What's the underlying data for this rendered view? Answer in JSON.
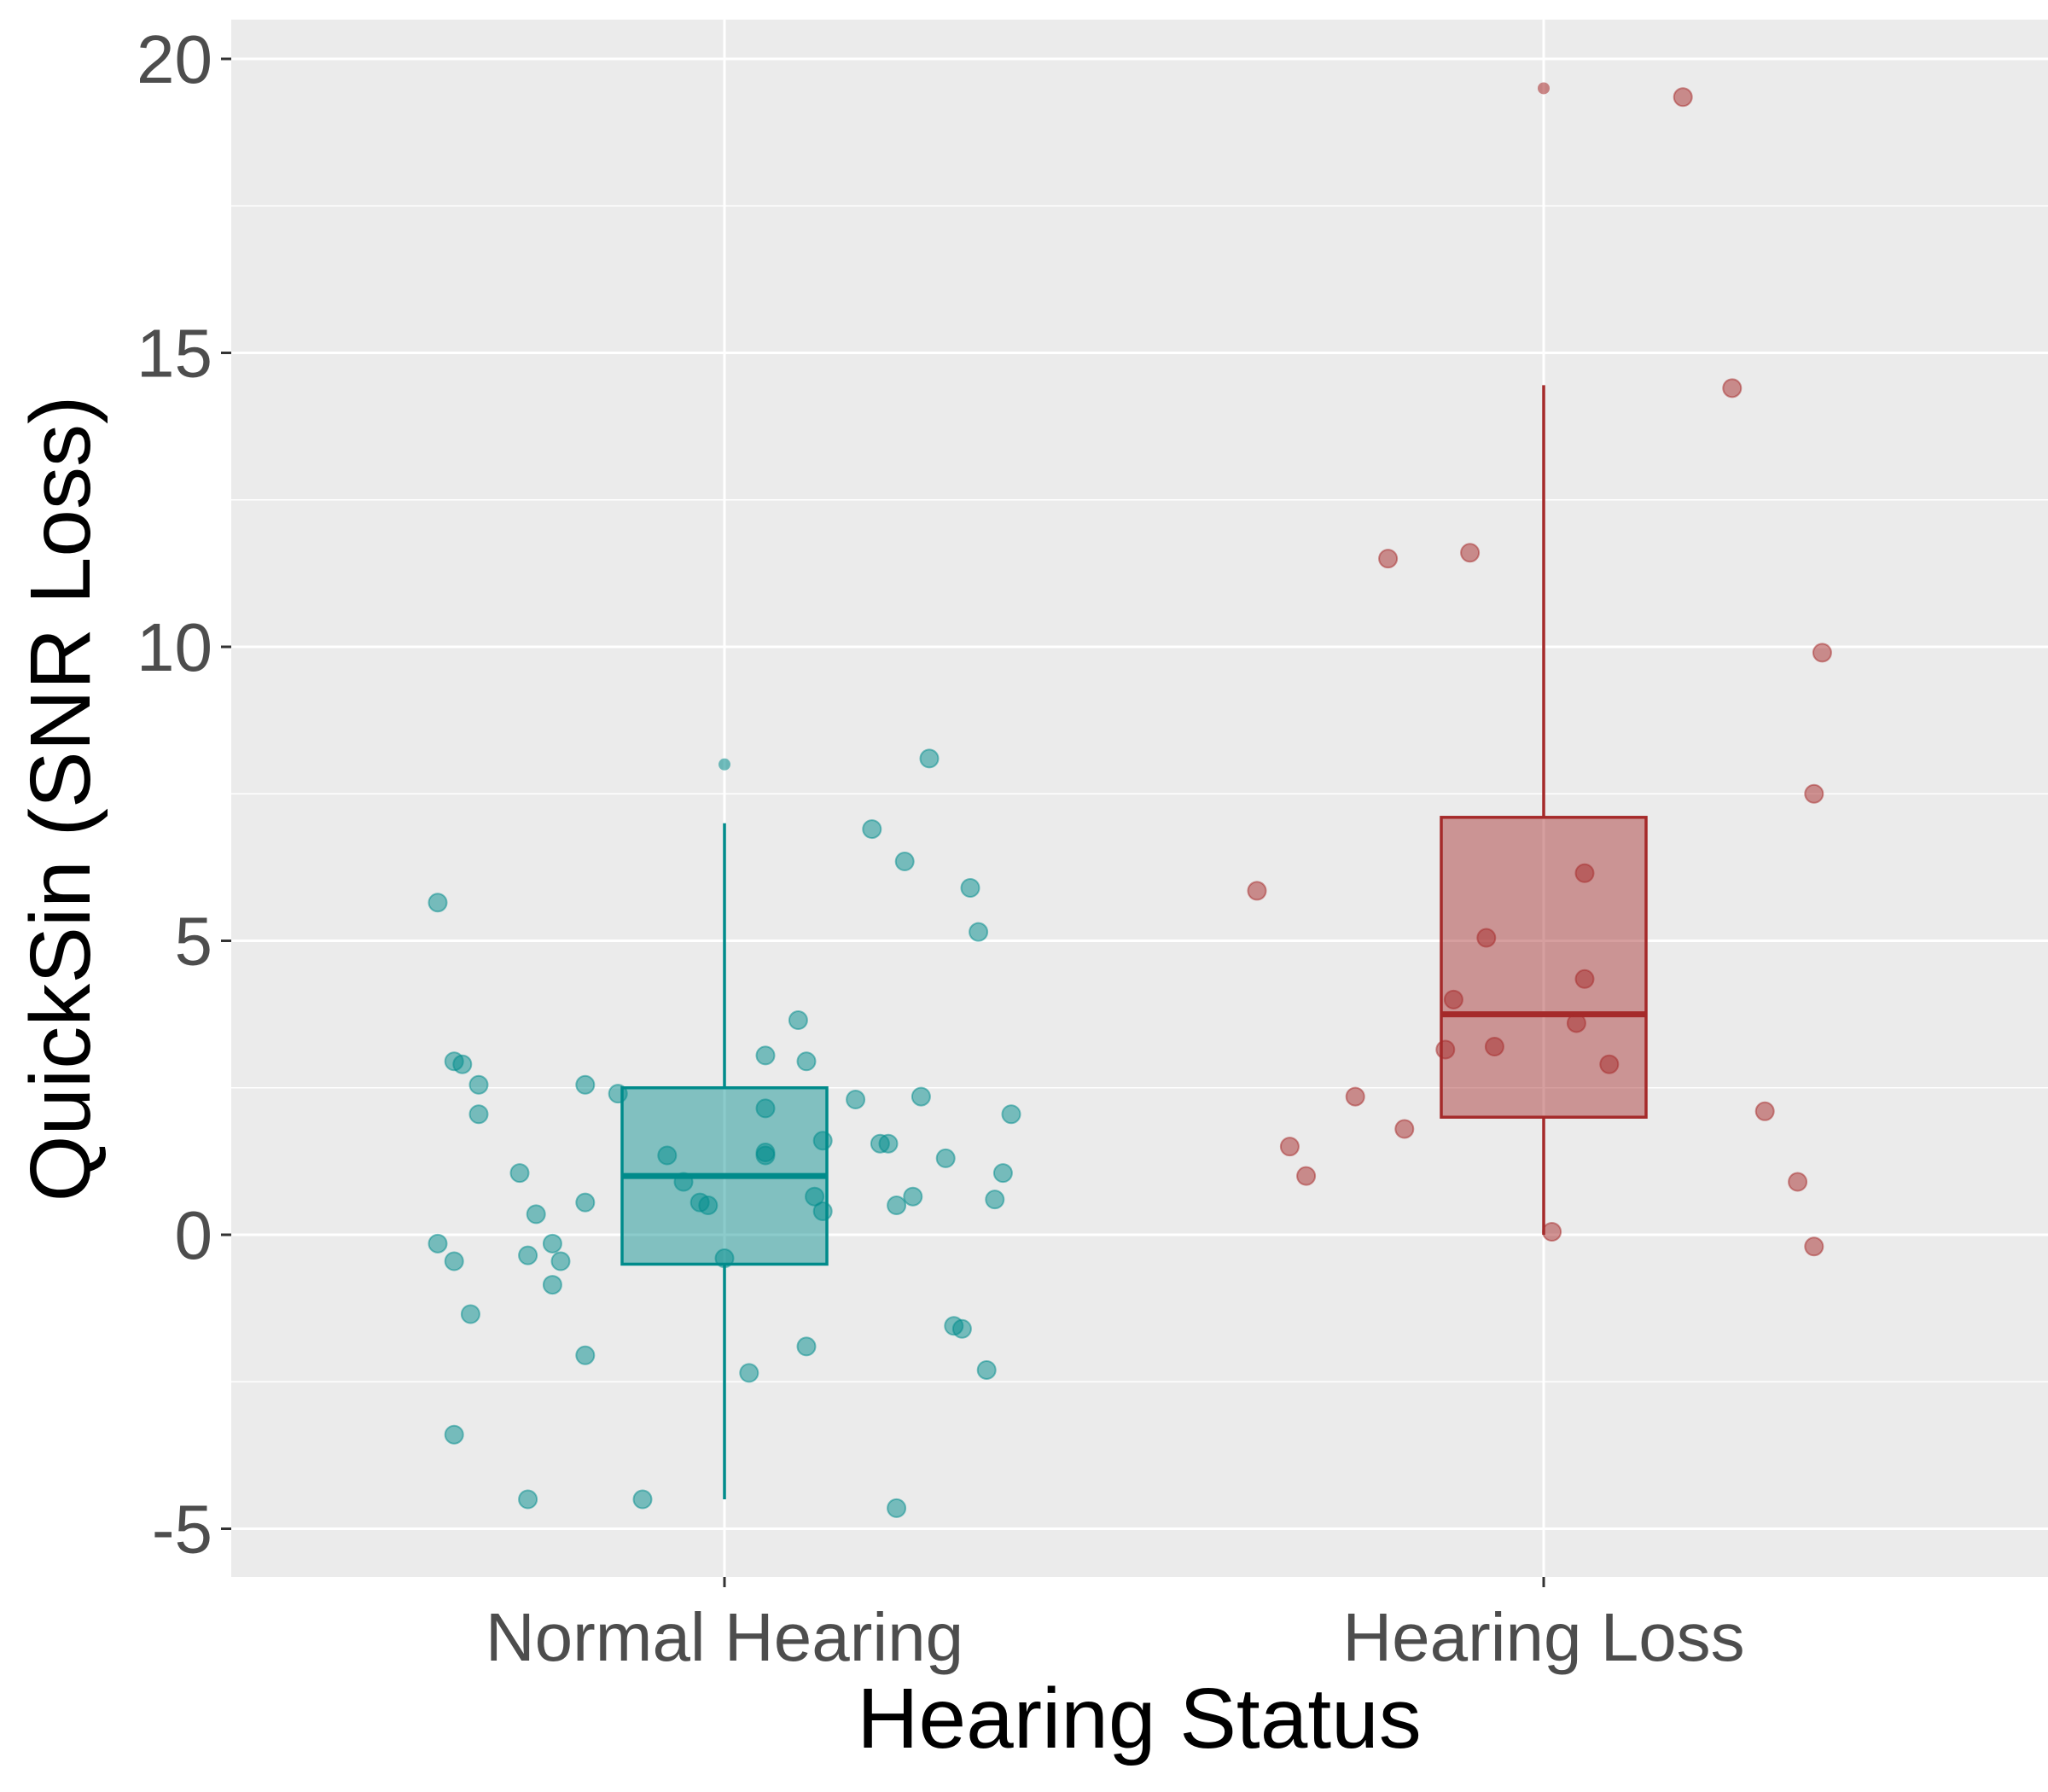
{
  "chart_data": {
    "type": "box",
    "xlabel": "Hearing Status",
    "ylabel": "QuickSin (SNR Loss)",
    "categories": [
      "Normal Hearing",
      "Hearing Loss"
    ],
    "ylim": [
      -5.8,
      20.7
    ],
    "y_ticks": [
      -5,
      0,
      5,
      10,
      15,
      20
    ],
    "y_tick_labels": [
      "-5",
      "0",
      "5",
      "10",
      "15",
      "20"
    ],
    "grid": true,
    "legend": "none",
    "colors": {
      "panel_bg": "#ebebeb",
      "grid": "#ffffff",
      "normal_hearing": "#008b8b",
      "hearing_loss": "#a52a2a"
    },
    "series": [
      {
        "category": "Normal Hearing",
        "box": {
          "min": -4.5,
          "q1": -0.5,
          "median": 1.0,
          "q3": 2.5,
          "max": 7.0
        },
        "outliers": [
          8.0
        ],
        "points": [
          [
            -0.35,
            5.65
          ],
          [
            -0.33,
            2.95
          ],
          [
            -0.32,
            2.9
          ],
          [
            -0.3,
            2.55
          ],
          [
            -0.3,
            2.05
          ],
          [
            -0.35,
            -0.15
          ],
          [
            -0.33,
            -0.45
          ],
          [
            -0.31,
            -1.35
          ],
          [
            -0.33,
            -3.4
          ],
          [
            -0.25,
            1.05
          ],
          [
            -0.23,
            0.35
          ],
          [
            -0.24,
            -0.35
          ],
          [
            -0.21,
            -0.15
          ],
          [
            -0.2,
            -0.45
          ],
          [
            -0.21,
            -0.85
          ],
          [
            -0.17,
            0.55
          ],
          [
            -0.17,
            -2.05
          ],
          [
            -0.24,
            -4.5
          ],
          [
            -0.17,
            2.55
          ],
          [
            -0.13,
            2.4
          ],
          [
            -0.1,
            -4.5
          ],
          [
            -0.07,
            1.35
          ],
          [
            -0.05,
            0.9
          ],
          [
            -0.03,
            0.55
          ],
          [
            -0.02,
            0.5
          ],
          [
            0.0,
            -0.4
          ],
          [
            0.03,
            -2.35
          ],
          [
            0.05,
            1.4
          ],
          [
            0.05,
            1.35
          ],
          [
            0.05,
            2.15
          ],
          [
            0.05,
            3.05
          ],
          [
            0.09,
            3.65
          ],
          [
            0.1,
            2.95
          ],
          [
            0.1,
            -1.9
          ],
          [
            0.11,
            0.65
          ],
          [
            0.12,
            1.6
          ],
          [
            0.12,
            0.4
          ],
          [
            0.16,
            2.3
          ],
          [
            0.18,
            6.9
          ],
          [
            0.19,
            1.55
          ],
          [
            0.2,
            1.55
          ],
          [
            0.21,
            0.5
          ],
          [
            0.21,
            -4.65
          ],
          [
            0.22,
            6.35
          ],
          [
            0.23,
            0.65
          ],
          [
            0.24,
            2.35
          ],
          [
            0.25,
            8.1
          ],
          [
            0.27,
            1.3
          ],
          [
            0.28,
            -1.55
          ],
          [
            0.29,
            -1.6
          ],
          [
            0.3,
            5.9
          ],
          [
            0.31,
            5.15
          ],
          [
            0.32,
            -2.3
          ],
          [
            0.33,
            0.6
          ],
          [
            0.34,
            1.05
          ],
          [
            0.35,
            2.05
          ]
        ]
      },
      {
        "category": "Hearing Loss",
        "box": {
          "min": 0.0,
          "q1": 2.0,
          "median": 3.75,
          "q3": 7.1,
          "max": 14.45
        },
        "outliers": [
          19.5
        ],
        "points": [
          [
            -0.35,
            5.85
          ],
          [
            -0.31,
            1.5
          ],
          [
            -0.29,
            1.0
          ],
          [
            -0.23,
            2.35
          ],
          [
            -0.19,
            11.5
          ],
          [
            -0.17,
            1.8
          ],
          [
            -0.12,
            3.15
          ],
          [
            -0.11,
            4.0
          ],
          [
            -0.09,
            11.6
          ],
          [
            -0.06,
            3.2
          ],
          [
            -0.07,
            5.05
          ],
          [
            0.01,
            0.05
          ],
          [
            0.04,
            3.6
          ],
          [
            0.05,
            4.35
          ],
          [
            0.05,
            6.15
          ],
          [
            0.08,
            2.9
          ],
          [
            0.17,
            19.35
          ],
          [
            0.23,
            14.4
          ],
          [
            0.27,
            2.1
          ],
          [
            0.31,
            0.9
          ],
          [
            0.33,
            -0.2
          ],
          [
            0.33,
            7.5
          ],
          [
            0.34,
            9.9
          ]
        ]
      }
    ]
  }
}
